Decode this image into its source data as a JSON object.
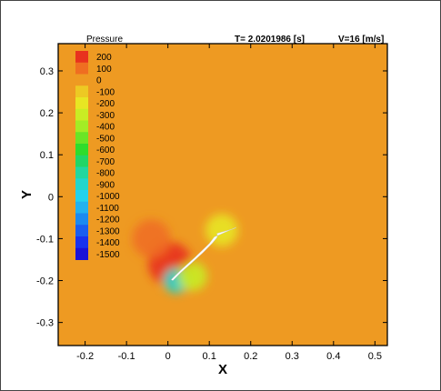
{
  "chart_data": {
    "type": "heatmap",
    "variable": "Pressure",
    "time_label": "T= 2.0201986 [s]",
    "velocity_label": "V=16 [m/s]",
    "xlabel": "X",
    "ylabel": "Y",
    "xlim": [
      -0.265,
      0.53
    ],
    "ylim": [
      -0.355,
      0.365
    ],
    "x_ticks": [
      -0.2,
      -0.1,
      0,
      0.1,
      0.2,
      0.3,
      0.4,
      0.5
    ],
    "x_tick_labels": [
      "-0.2",
      "-0.1",
      "0",
      "0.1",
      "0.2",
      "0.3",
      "0.4",
      "0.5"
    ],
    "y_ticks": [
      0.3,
      0.2,
      0.1,
      0,
      -0.1,
      -0.2,
      -0.3
    ],
    "y_tick_labels": [
      "0.3",
      "0.2",
      "0.1",
      "0",
      "-0.1",
      "-0.2",
      "-0.3"
    ],
    "colorbar_levels": [
      200,
      100,
      0,
      -100,
      -200,
      -300,
      -400,
      -500,
      -600,
      -700,
      -800,
      -900,
      -1000,
      -1100,
      -1200,
      -1300,
      -1400,
      -1500
    ],
    "colorbar_labels": [
      "200",
      "100",
      "0",
      "-100",
      "-200",
      "-300",
      "-400",
      "-500",
      "-600",
      "-700",
      "-800",
      "-900",
      "-1000",
      "-1100",
      "-1200",
      "-1300",
      "-1400",
      "-1500"
    ],
    "colorbar_colors": [
      "#e8321e",
      "#ef6e21",
      "#ee9a22",
      "#edc923",
      "#e8e623",
      "#c9ec24",
      "#a3ec25",
      "#6ae526",
      "#2fdc2c",
      "#22d666",
      "#23d79f",
      "#23d6cb",
      "#23d2ee",
      "#22b2f0",
      "#1b8af0",
      "#1a5ef0",
      "#1932ee",
      "#1b12d8"
    ],
    "background_level": 20,
    "features": [
      {
        "kind": "high_pressure",
        "x": 0.005,
        "y": -0.16,
        "level": 180
      },
      {
        "kind": "high_pressure",
        "x": -0.04,
        "y": -0.1,
        "level": 120
      },
      {
        "kind": "low_pressure",
        "x": 0.02,
        "y": -0.2,
        "level": -900
      },
      {
        "kind": "low_pressure",
        "x": 0.06,
        "y": -0.19,
        "level": -300
      },
      {
        "kind": "low_pressure",
        "x": 0.13,
        "y": -0.08,
        "level": -250
      }
    ],
    "airfoil": [
      {
        "x": 0.012,
        "y": -0.2
      },
      {
        "x": 0.03,
        "y": -0.182
      },
      {
        "x": 0.055,
        "y": -0.16
      },
      {
        "x": 0.085,
        "y": -0.133
      },
      {
        "x": 0.108,
        "y": -0.11
      },
      {
        "x": 0.118,
        "y": -0.098
      },
      {
        "x": 0.12,
        "y": -0.092
      },
      {
        "x": 0.118,
        "y": -0.088
      },
      {
        "x": 0.16,
        "y": -0.076
      },
      {
        "x": 0.165,
        "y": -0.073
      },
      {
        "x": 0.112,
        "y": -0.096
      },
      {
        "x": 0.1,
        "y": -0.112
      },
      {
        "x": 0.065,
        "y": -0.145
      },
      {
        "x": 0.035,
        "y": -0.172
      },
      {
        "x": 0.014,
        "y": -0.192
      },
      {
        "x": 0.008,
        "y": -0.198
      }
    ]
  }
}
